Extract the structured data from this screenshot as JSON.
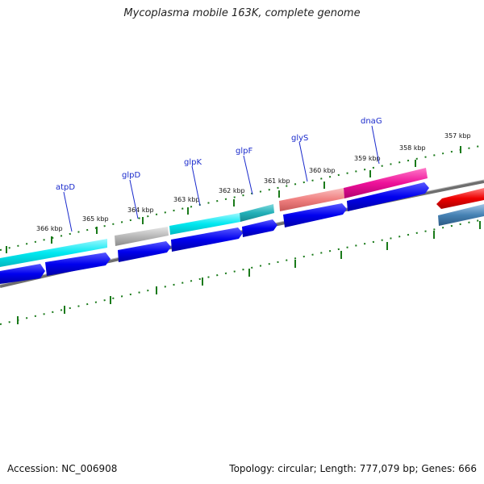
{
  "title": "Mycoplasma mobile 163K, complete genome",
  "footer": {
    "accession": "Accession: NC_006908",
    "summary": "Topology: circular; Length: 777,079 bp; Genes: 666"
  },
  "scale_labels": [
    "357 kbp",
    "358 kbp",
    "359 kbp",
    "360 kbp",
    "361 kbp",
    "362 kbp",
    "363 kbp",
    "364 kbp",
    "365 kbp",
    "366 kbp"
  ],
  "gene_labels": [
    "dnaG",
    "glyS",
    "glpF",
    "glpK",
    "glpD",
    "atpD"
  ],
  "colors": {
    "backbone": "#808080",
    "ticks": "#1a7a1a",
    "cds": "#0000ee",
    "cyan": "#00e8f0",
    "teal": "#22b0b8",
    "gray": "#b8b8b8",
    "salmon": "#f08080",
    "pink": "#ee1199",
    "red": "#ee0000",
    "steel": "#4682b4"
  }
}
